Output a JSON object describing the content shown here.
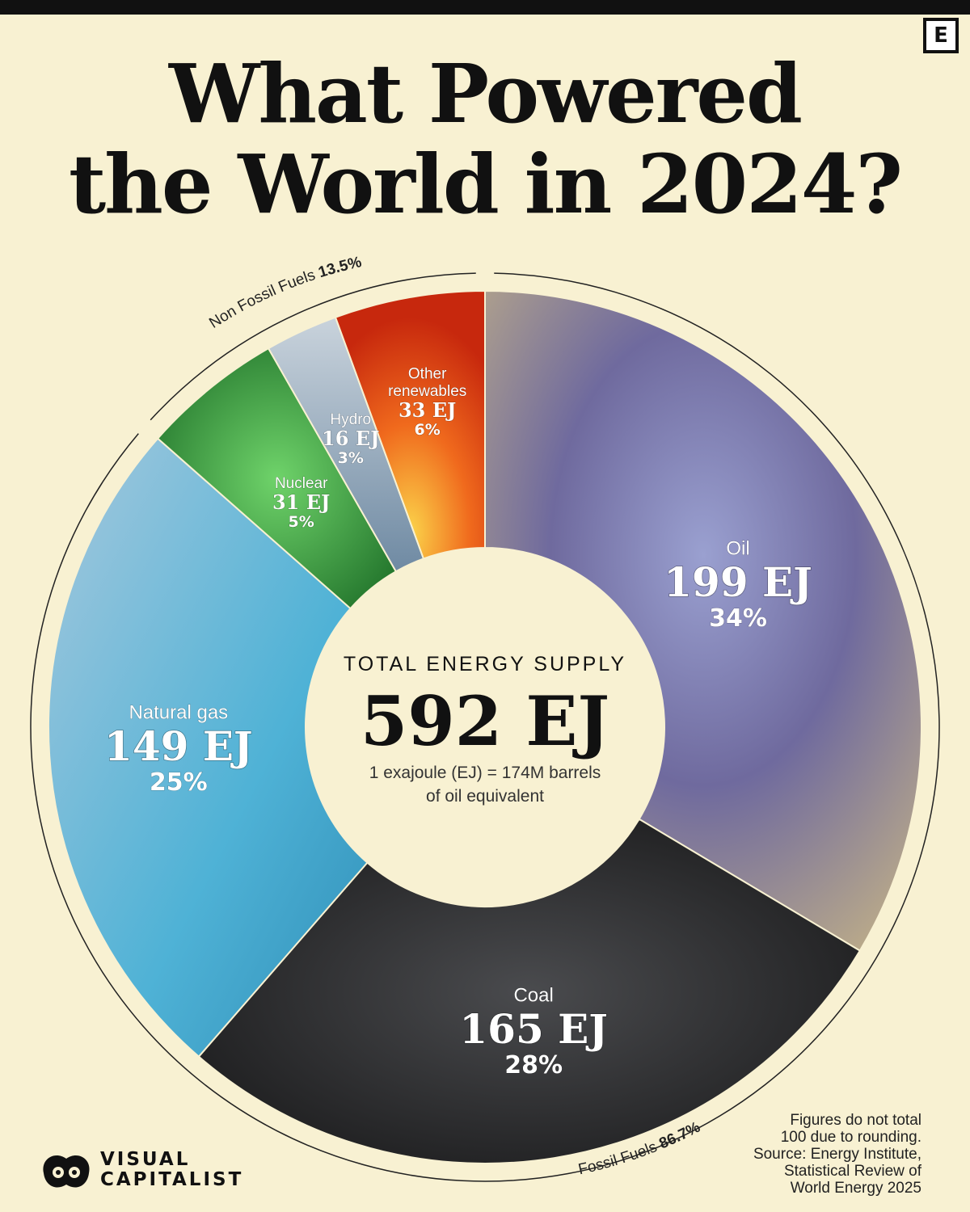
{
  "brand": {
    "badge": "E",
    "logo_line1": "VISUAL",
    "logo_line2": "CAPITALIST"
  },
  "title": {
    "line1": "What Powered",
    "line2": "the World in 2024?"
  },
  "footnote": {
    "line1": "Figures do not total",
    "line2": "100 due to rounding.",
    "line3": "Source: Energy Institute,",
    "line4": "Statistical Review of",
    "line5": "World Energy 2025"
  },
  "chart_data": {
    "type": "pie",
    "title": "What Powered the World in 2024?",
    "center": {
      "heading": "TOTAL ENERGY SUPPLY",
      "value": "592 EJ",
      "note_line1": "1 exajoule (EJ) = 174M barrels",
      "note_line2": "of oil equivalent"
    },
    "total_ej": 592,
    "slices": [
      {
        "name": "Oil",
        "value_ej": 199,
        "value_label": "199 EJ",
        "percent_label": "34%",
        "color": "#7c7fae"
      },
      {
        "name": "Coal",
        "value_ej": 165,
        "value_label": "165 EJ",
        "percent_label": "28%",
        "color": "#2a2a2c"
      },
      {
        "name": "Natural gas",
        "value_ej": 149,
        "value_label": "149 EJ",
        "percent_label": "25%",
        "color": "#5aaed0"
      },
      {
        "name": "Nuclear",
        "value_ej": 31,
        "value_label": "31 EJ",
        "percent_label": "5%",
        "color": "#2f9a3a"
      },
      {
        "name": "Hydro",
        "value_ej": 16,
        "value_label": "16 EJ",
        "percent_label": "3%",
        "color": "#8fa5b8"
      },
      {
        "name": "Other renewables",
        "value_ej": 33,
        "value_label": "33 EJ",
        "percent_label": "6%",
        "color": "#e8501a"
      }
    ],
    "groups": [
      {
        "name": "Fossil Fuels",
        "percent_label": "86.7%",
        "members": [
          "Oil",
          "Coal",
          "Natural gas"
        ]
      },
      {
        "name": "Non Fossil Fuels",
        "percent_label": "13.5%",
        "members": [
          "Nuclear",
          "Hydro",
          "Other renewables"
        ]
      }
    ]
  }
}
